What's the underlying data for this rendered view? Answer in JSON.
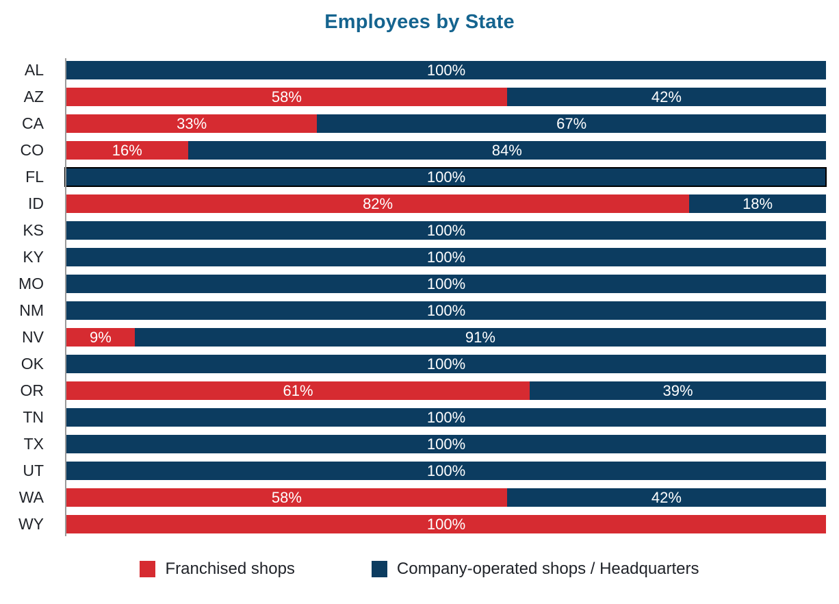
{
  "title": "Employees by State",
  "colors": {
    "title": "#15648F",
    "franchised": "#D62B31",
    "company": "#0C3C60",
    "axis": "#9A9A9A",
    "bar_label": "#FFFFFF",
    "category_label": "#1F2228",
    "highlight_outline": "#000000"
  },
  "legend": {
    "items": [
      {
        "label": "Franchised shops",
        "color": "#D62B31",
        "key": "franchised"
      },
      {
        "label": "Company-operated shops / Headquarters",
        "color": "#0C3C60",
        "key": "company"
      }
    ]
  },
  "chart_data": {
    "type": "bar",
    "orientation": "horizontal",
    "stacked": true,
    "title": "Employees by State",
    "xlabel": "",
    "ylabel": "",
    "xlim": [
      0,
      100
    ],
    "value_unit": "percent",
    "label_format": "{value}%",
    "grid": false,
    "legend_position": "bottom",
    "highlighted_category": "FL",
    "categories": [
      "AL",
      "AZ",
      "CA",
      "CO",
      "FL",
      "ID",
      "KS",
      "KY",
      "MO",
      "NM",
      "NV",
      "OK",
      "OR",
      "TN",
      "TX",
      "UT",
      "WA",
      "WY"
    ],
    "series": [
      {
        "name": "Franchised shops",
        "color": "#D62B31",
        "key": "franchised",
        "values": [
          0,
          58,
          33,
          16,
          0,
          82,
          0,
          0,
          0,
          0,
          9,
          0,
          61,
          0,
          0,
          0,
          58,
          100
        ]
      },
      {
        "name": "Company-operated shops / Headquarters",
        "color": "#0C3C60",
        "key": "company",
        "values": [
          100,
          42,
          67,
          84,
          100,
          18,
          100,
          100,
          100,
          100,
          91,
          100,
          39,
          100,
          100,
          100,
          42,
          0
        ]
      }
    ]
  }
}
